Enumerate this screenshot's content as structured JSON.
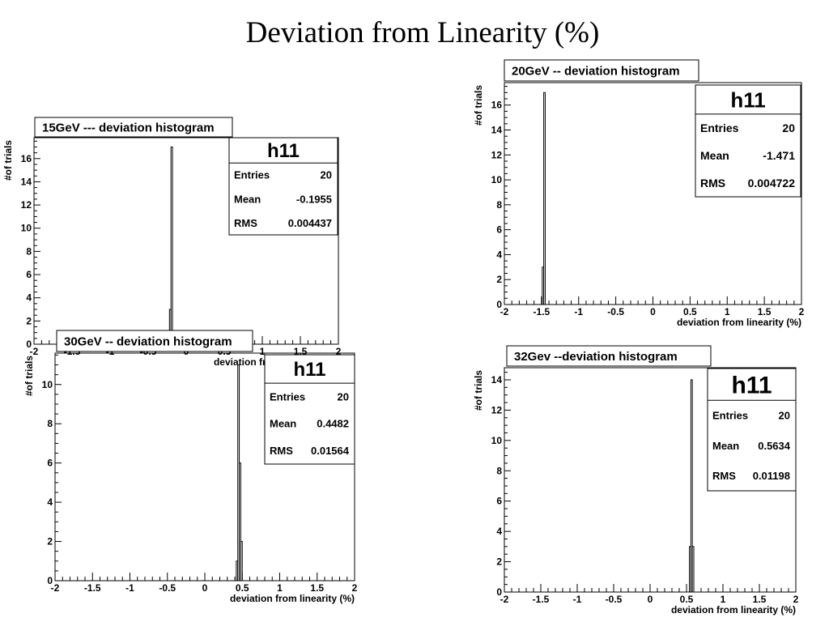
{
  "slide": {
    "title": "Deviation from Linearity (%)"
  },
  "chart_data": [
    {
      "type": "bar",
      "title": "15GeV  --- deviation histogram",
      "xlabel": "deviation from linearity (%)",
      "ylabel": "#of trials",
      "xlim": [
        -2,
        2
      ],
      "ylim": [
        0,
        17.8
      ],
      "x_ticks": [
        "-2",
        "-1.5",
        "-1",
        "-0.5",
        "0",
        "0.5",
        "1",
        "1.5",
        "2"
      ],
      "y_ticks": [
        "0",
        "2",
        "4",
        "6",
        "8",
        "10",
        "12",
        "14",
        "16"
      ],
      "bins": [
        {
          "x0": -0.22,
          "x1": -0.2,
          "count": 3
        },
        {
          "x0": -0.2,
          "x1": -0.18,
          "count": 17
        }
      ],
      "stats": {
        "name": "h11",
        "rows": [
          {
            "label": "Entries",
            "value": "20"
          },
          {
            "label": "Mean",
            "value": "-0.1955"
          },
          {
            "label": "RMS",
            "value": "0.004437"
          }
        ]
      }
    },
    {
      "type": "bar",
      "title": "20GeV  -- deviation histogram",
      "xlabel": "deviation from linearity (%)",
      "ylabel": "#of trials",
      "xlim": [
        -2,
        2
      ],
      "ylim": [
        0,
        17.8
      ],
      "x_ticks": [
        "-2",
        "-1.5",
        "-1",
        "-0.5",
        "0",
        "0.5",
        "1",
        "1.5",
        "2"
      ],
      "y_ticks": [
        "0",
        "2",
        "4",
        "6",
        "8",
        "10",
        "12",
        "14",
        "16"
      ],
      "bins": [
        {
          "x0": -1.49,
          "x1": -1.47,
          "count": 3
        },
        {
          "x0": -1.47,
          "x1": -1.45,
          "count": 17
        }
      ],
      "stats": {
        "name": "h11",
        "rows": [
          {
            "label": "Entries",
            "value": "20"
          },
          {
            "label": "Mean",
            "value": "-1.471"
          },
          {
            "label": "RMS",
            "value": "0.004722"
          }
        ]
      }
    },
    {
      "type": "bar",
      "title": "30GeV  -- deviation histogram",
      "xlabel": "deviation from linearity (%)",
      "ylabel": "#of trials",
      "xlim": [
        -2,
        2
      ],
      "ylim": [
        0,
        11.6
      ],
      "x_ticks": [
        "-2",
        "-1.5",
        "-1",
        "-0.5",
        "0",
        "0.5",
        "1",
        "1.5",
        "2"
      ],
      "y_ticks": [
        "0",
        "2",
        "4",
        "6",
        "8",
        "10"
      ],
      "bins": [
        {
          "x0": 0.42,
          "x1": 0.44,
          "count": 1
        },
        {
          "x0": 0.44,
          "x1": 0.46,
          "count": 11
        },
        {
          "x0": 0.46,
          "x1": 0.48,
          "count": 6
        },
        {
          "x0": 0.48,
          "x1": 0.5,
          "count": 2
        }
      ],
      "stats": {
        "name": "h11",
        "rows": [
          {
            "label": "Entries",
            "value": "20"
          },
          {
            "label": "Mean",
            "value": "0.4482"
          },
          {
            "label": "RMS",
            "value": "0.01564"
          }
        ]
      }
    },
    {
      "type": "bar",
      "title": "32Gev  --deviation histogram",
      "xlabel": "deviation from linearity (%)",
      "ylabel": "#of trials",
      "xlim": [
        -2,
        2
      ],
      "ylim": [
        0,
        14.8
      ],
      "x_ticks": [
        "-2",
        "-1.5",
        "-1",
        "-0.5",
        "0",
        "0.5",
        "1",
        "1.5",
        "2"
      ],
      "y_ticks": [
        "0",
        "2",
        "4",
        "6",
        "8",
        "10",
        "12",
        "14"
      ],
      "bins": [
        {
          "x0": 0.54,
          "x1": 0.56,
          "count": 3
        },
        {
          "x0": 0.56,
          "x1": 0.58,
          "count": 14
        },
        {
          "x0": 0.58,
          "x1": 0.6,
          "count": 3
        }
      ],
      "stats": {
        "name": "h11",
        "rows": [
          {
            "label": "Entries",
            "value": "20"
          },
          {
            "label": "Mean",
            "value": "0.5634"
          },
          {
            "label": "RMS",
            "value": "0.01198"
          }
        ]
      }
    }
  ]
}
